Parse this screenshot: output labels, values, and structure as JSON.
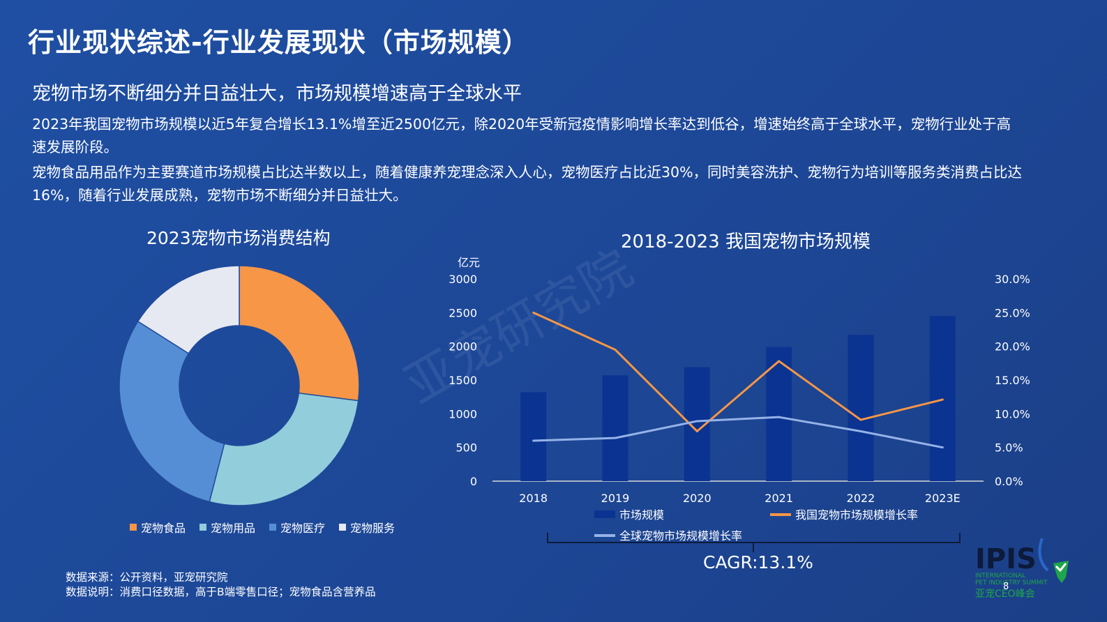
{
  "header": {
    "title": "行业现状综述-行业发展现状（市场规模）",
    "subtitle": "宠物市场不断细分并日益壮大，市场规模增速高于全球水平"
  },
  "body": {
    "para1": "2023年我国宠物市场规模以近5年复合增长13.1%增至近2500亿元，除2020年受新冠疫情影响增长率达到低谷，增速始终高于全球水平，宠物行业处于高速发展阶段。",
    "para2": "宠物食品用品作为主要赛道市场规模占比达半数以上，随着健康养宠理念深入人心，宠物医疗占比近30%，同时美容洗护、宠物行为培训等服务类消费占比达16%，随着行业发展成熟，宠物市场不断细分并日益壮大。"
  },
  "watermark": "亚宠研究院",
  "footer": {
    "source": "数据来源：公开资料，亚宠研究院",
    "note": "数据说明：消费口径数据，高于B端零售口径；宠物食品含营养品",
    "cagr": "CAGR:13.1%",
    "page": "8"
  },
  "logo": {
    "text": "IPIS",
    "line1": "INTERNATIONAL",
    "line2": "PET INDUSTRY SUMMIT",
    "line3": "亚宠CEO峰会"
  },
  "colors": {
    "food": "#f79646",
    "supplies": "#92cddc",
    "medical": "#558ed5",
    "service": "#e6e9f1",
    "bar": "#0b3391",
    "china_line": "#f79646",
    "global_line": "#95b3e8"
  },
  "chart_data": [
    {
      "type": "pie",
      "title": "2023宠物市场消费结构",
      "donut": true,
      "legend_position": "bottom",
      "slices": [
        {
          "name": "宠物食品",
          "value": 27
        },
        {
          "name": "宠物用品",
          "value": 27
        },
        {
          "name": "宠物医疗",
          "value": 30
        },
        {
          "name": "宠物服务",
          "value": 16
        }
      ]
    },
    {
      "type": "bar",
      "title": "2018-2023 我国宠物市场规模",
      "categories": [
        "2018",
        "2019",
        "2020",
        "2021",
        "2022",
        "2023E"
      ],
      "ylabel": "亿元",
      "ylim": [
        0,
        3000
      ],
      "yticks": [
        "0",
        "500",
        "1000",
        "1500",
        "2000",
        "2500",
        "3000"
      ],
      "y2lim": [
        0,
        30
      ],
      "y2ticks": [
        "0.0%",
        "5.0%",
        "10.0%",
        "15.0%",
        "20.0%",
        "25.0%",
        "30.0%"
      ],
      "grid": false,
      "legend_position": "bottom",
      "series": [
        {
          "name": "市场规模",
          "type": "bar",
          "axis": "left",
          "values": [
            1320,
            1570,
            1690,
            1990,
            2170,
            2450
          ]
        },
        {
          "name": "我国宠物市场规模增长率",
          "type": "line",
          "axis": "right",
          "values": [
            25.0,
            19.5,
            7.4,
            17.8,
            9.1,
            12.1
          ]
        },
        {
          "name": "全球宠物市场规模增长率",
          "type": "line",
          "axis": "right",
          "values": [
            6.0,
            6.4,
            8.9,
            9.5,
            7.4,
            5.0
          ]
        }
      ]
    }
  ]
}
